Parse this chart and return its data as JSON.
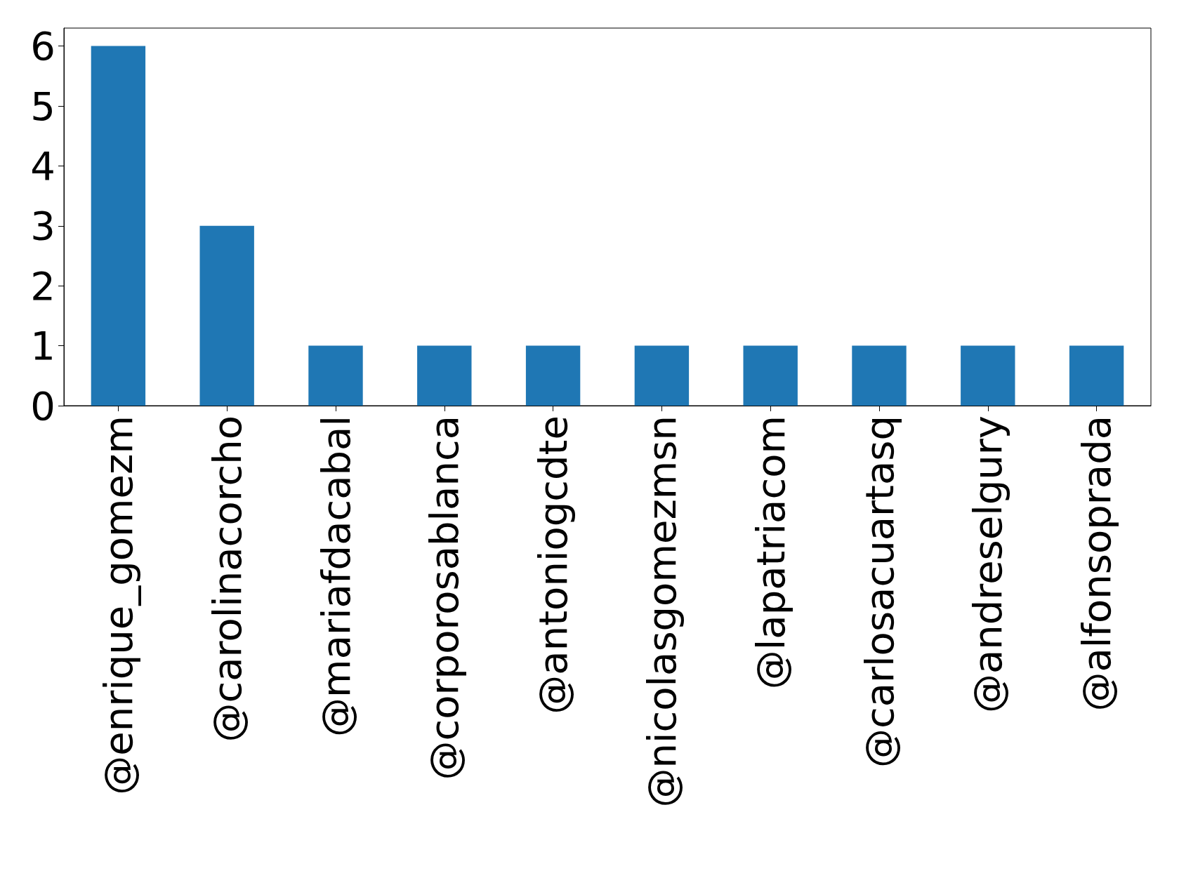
{
  "chart_data": {
    "type": "bar",
    "categories": [
      "@enrique_gomezm",
      "@carolinacorcho",
      "@mariafdacabal",
      "@corporosablanca",
      "@antoniogcdte",
      "@nicolasgomezmsn",
      "@lapatriacom",
      "@carlosacuartasq",
      "@andreselgury",
      "@alfonsoprada"
    ],
    "values": [
      6,
      3,
      1,
      1,
      1,
      1,
      1,
      1,
      1,
      1
    ],
    "color": "#1f77b4",
    "ylim": [
      0,
      6.3
    ],
    "yticks": [
      0,
      1,
      2,
      3,
      4,
      5,
      6
    ],
    "grid": false
  }
}
